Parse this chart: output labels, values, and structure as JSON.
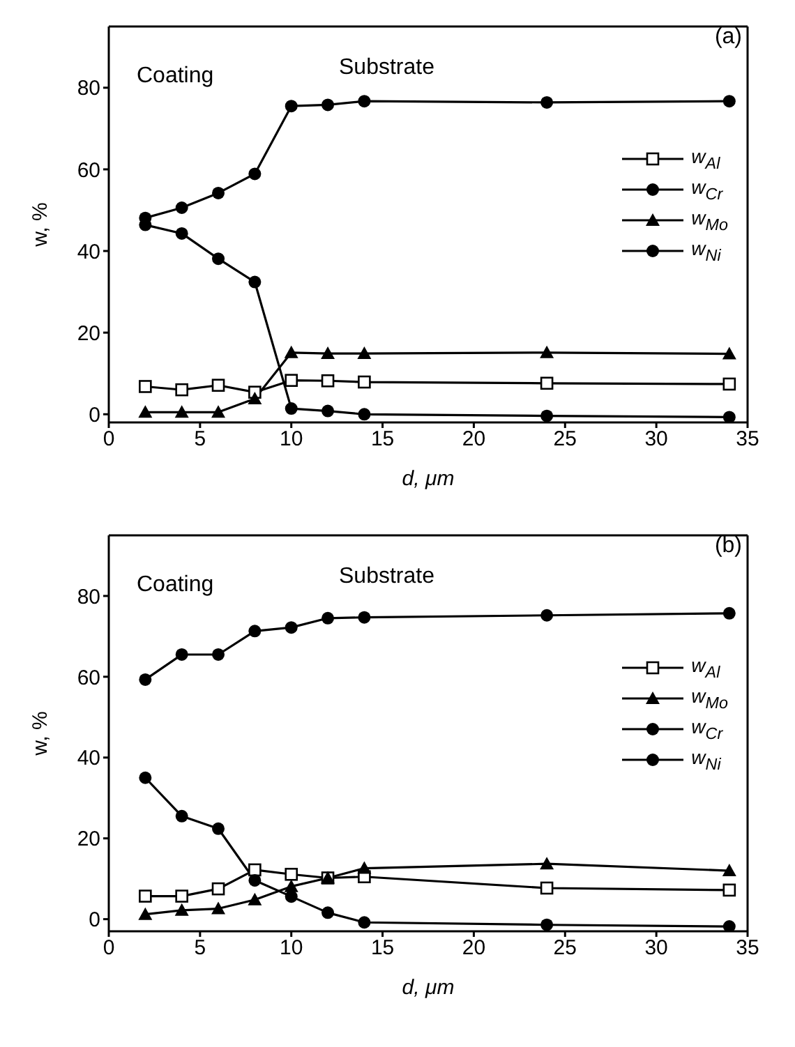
{
  "chart_data": [
    {
      "type": "line",
      "xlabel": "d, μm",
      "ylabel": "w, %",
      "annotations": [
        "Coating",
        "Substrate",
        "(a)"
      ],
      "x": [
        2,
        4,
        6,
        8,
        10,
        12,
        14,
        24,
        34
      ],
      "series": [
        {
          "name": "w$_{Al}$",
          "color": "#000000",
          "marker": "square",
          "values": [
            6.8,
            6.0,
            7.1,
            5.4,
            8.3,
            8.2,
            7.9,
            7.6,
            7.4
          ]
        },
        {
          "name": "w$_{Cr}$",
          "color": "#000000",
          "marker": "circle",
          "values": [
            46.4,
            44.3,
            38.1,
            32.4,
            1.4,
            0.8,
            0.0,
            -0.4,
            -0.7
          ]
        },
        {
          "name": "w$_{Mo}$",
          "color": "#000000",
          "marker": "triangle",
          "values": [
            0.5,
            0.5,
            0.5,
            3.8,
            15.1,
            14.9,
            14.9,
            15.1,
            14.8
          ]
        },
        {
          "name": "w$_{Ni}$",
          "color": "#000000",
          "marker": "circle",
          "values": [
            48.1,
            50.6,
            54.2,
            58.9,
            75.5,
            75.8,
            76.7,
            76.4,
            76.7
          ]
        }
      ],
      "xlim": [
        0,
        35
      ],
      "xticks": [
        0,
        5,
        10,
        15,
        20,
        25,
        30,
        35
      ],
      "ylim": [
        -2,
        95
      ],
      "yticks": [
        0,
        20,
        40,
        60,
        80
      ],
      "grid": false,
      "legend": "right"
    },
    {
      "type": "line",
      "xlabel": "d, μm",
      "ylabel": "w, %",
      "annotations": [
        "Coating",
        "Substrate",
        "(b)"
      ],
      "x": [
        2,
        4,
        6,
        8,
        10,
        12,
        14,
        24,
        34
      ],
      "series": [
        {
          "name": "w$_{Al}$",
          "color": "#000000",
          "marker": "square",
          "values": [
            5.7,
            5.7,
            7.5,
            12.2,
            11.1,
            10.2,
            10.5,
            7.7,
            7.2
          ]
        },
        {
          "name": "w$_{Mo}$",
          "color": "#000000",
          "marker": "triangle",
          "values": [
            1.2,
            2.2,
            2.6,
            4.8,
            8.1,
            10.2,
            12.6,
            13.7,
            12.0
          ]
        },
        {
          "name": "w$_{Cr}$",
          "color": "#000000",
          "marker": "circle",
          "values": [
            35.0,
            25.5,
            22.4,
            9.6,
            5.6,
            1.6,
            -0.8,
            -1.4,
            -1.8
          ]
        },
        {
          "name": "w$_{Ni}$",
          "color": "#000000",
          "marker": "circle",
          "values": [
            59.3,
            65.5,
            65.5,
            71.3,
            72.2,
            74.5,
            74.7,
            75.2,
            75.7
          ]
        }
      ],
      "xlim": [
        0,
        35
      ],
      "xticks": [
        0,
        5,
        10,
        15,
        20,
        25,
        30,
        35
      ],
      "ylim": [
        -3,
        95
      ],
      "yticks": [
        0,
        20,
        40,
        60,
        80
      ],
      "grid": false,
      "legend": "right"
    }
  ]
}
